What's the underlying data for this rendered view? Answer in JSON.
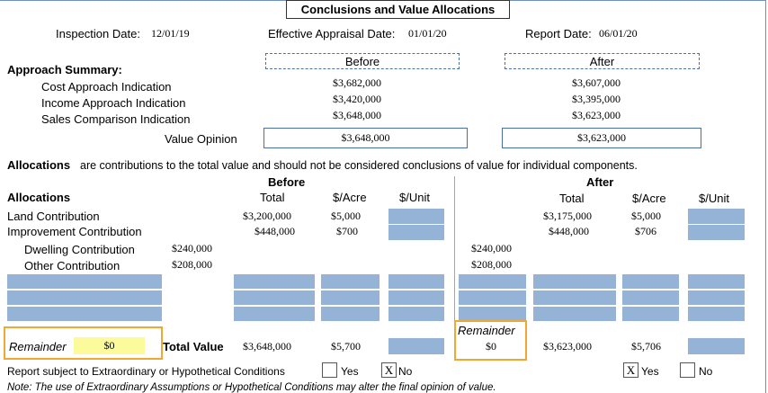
{
  "header": {
    "title": "Conclusions and Value Allocations",
    "inspection_date": {
      "label": "Inspection Date:",
      "value": "12/01/19"
    },
    "effective_date": {
      "label": "Effective Appraisal Date:",
      "value": "01/01/20"
    },
    "report_date": {
      "label": "Report Date:",
      "value": "06/01/20"
    }
  },
  "approach_summary": {
    "title": "Approach Summary:",
    "before_label": "Before",
    "after_label": "After",
    "rows": [
      {
        "label": "Cost Approach Indication",
        "before": "$3,682,000",
        "after": "$3,607,000"
      },
      {
        "label": "Income Approach Indication",
        "before": "$3,420,000",
        "after": "$3,395,000"
      },
      {
        "label": "Sales Comparison Indication",
        "before": "$3,648,000",
        "after": "$3,623,000"
      }
    ],
    "value_opinion": {
      "label": "Value Opinion",
      "before": "$3,648,000",
      "after": "$3,623,000"
    }
  },
  "allocations_note": {
    "bold": "Allocations",
    "text": "are contributions to the total value and should not be considered conclusions of value for individual components."
  },
  "allocations": {
    "before_heading": "Before",
    "after_heading": "After",
    "title": "Allocations",
    "columns": [
      "Total",
      "$/Acre",
      "$/Unit"
    ],
    "rows": [
      {
        "label": "Land Contribution",
        "before_total": "$3,200,000",
        "before_acre": "$5,000",
        "after_total": "$3,175,000",
        "after_acre": "$5,000"
      },
      {
        "label": "Improvement Contribution",
        "before_total": "$448,000",
        "before_acre": "$700",
        "after_total": "$448,000",
        "after_acre": "$706"
      }
    ],
    "sub_rows": [
      {
        "label": "Dwelling Contribution",
        "before": "$240,000",
        "after": "$240,000"
      },
      {
        "label": "Other Contribution",
        "before": "$208,000",
        "after": "$208,000"
      }
    ],
    "remainder": {
      "label": "Remainder",
      "before": "$0",
      "after": "$0"
    },
    "total": {
      "label": "Total Value",
      "before_total": "$3,648,000",
      "before_acre": "$5,700",
      "after_total": "$3,623,000",
      "after_acre": "$5,706"
    }
  },
  "conditions": {
    "label": "Report subject to Extraordinary or Hypothetical Conditions",
    "yes": "Yes",
    "no": "No",
    "mark": "X"
  },
  "note": "Note: The use of Extraordinary Assumptions or Hypothetical Conditions may alter the final opinion of value."
}
